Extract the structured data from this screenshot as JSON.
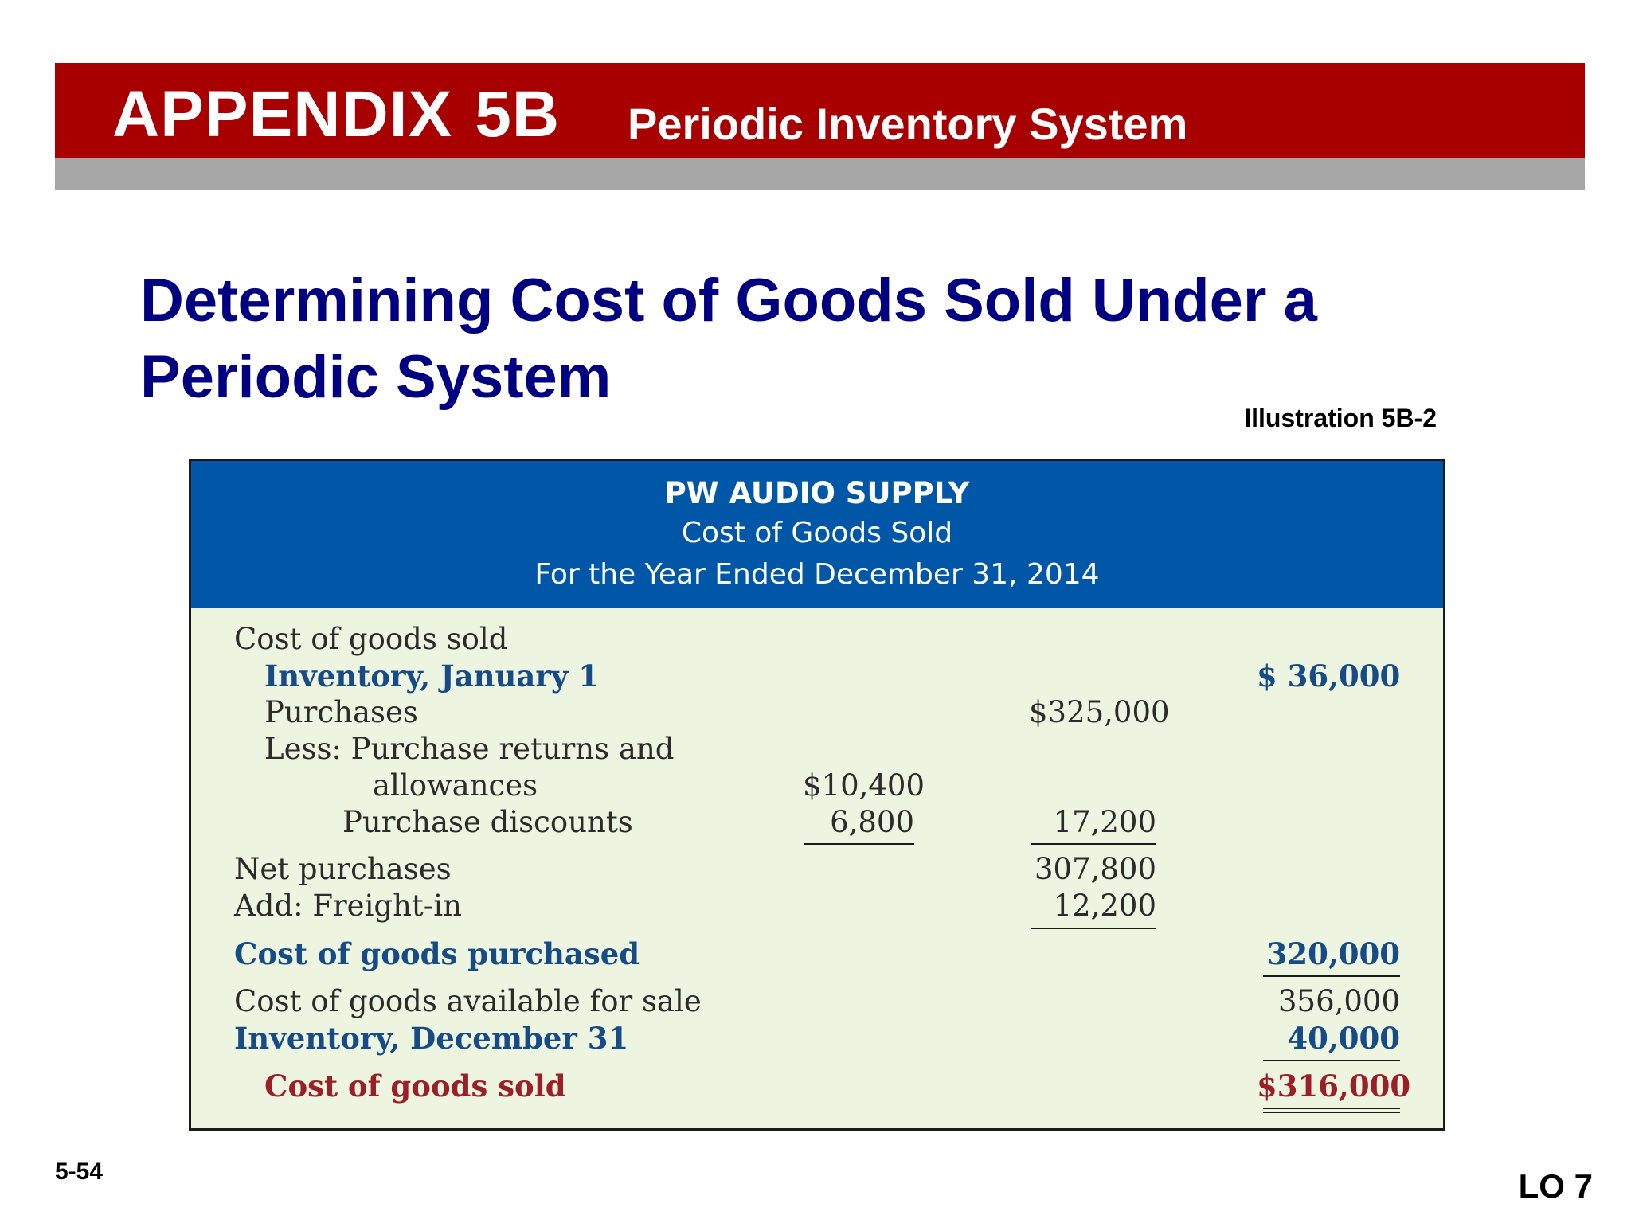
{
  "banner": {
    "appendix_word": "APPENDIX",
    "appendix_number": "5B",
    "subtitle": "Periodic Inventory System"
  },
  "slide": {
    "title": "Determining Cost of Goods Sold Under a Periodic System",
    "illustration": "Illustration 5B-2",
    "number": "5-54",
    "learning_objective": "LO 7"
  },
  "statement": {
    "company": "PW AUDIO SUPPLY",
    "name": "Cost of Goods Sold",
    "period": "For the Year Ended December 31, 2014",
    "rows": {
      "cogs_heading": {
        "label": "Cost of goods sold"
      },
      "inventory_jan": {
        "label": "Inventory, January 1",
        "col3": "$  36,000"
      },
      "purchases": {
        "label": "Purchases",
        "col2": "$325,000"
      },
      "less_returns": {
        "label": "Less: Purchase returns and"
      },
      "allowances": {
        "label": "allowances",
        "col1": "$10,400"
      },
      "discounts": {
        "label": "Purchase discounts",
        "col1": "6,800",
        "col2": "17,200"
      },
      "net_purchases": {
        "label": "Net purchases",
        "col2": "307,800"
      },
      "freight_in": {
        "label": "Add: Freight-in",
        "col2": "12,200"
      },
      "cost_purchased": {
        "label": "Cost of goods purchased",
        "col3": "320,000"
      },
      "available": {
        "label": "Cost of goods available for sale",
        "col3": "356,000"
      },
      "inventory_dec": {
        "label": "Inventory, December 31",
        "col3": "40,000"
      },
      "cogs_total": {
        "label": "Cost of goods sold",
        "col3": "$316,000"
      }
    }
  },
  "colors": {
    "banner_red": "#a80000",
    "banner_gray": "#a6a6a6",
    "title_navy": "#000080",
    "statement_header_blue": "#0057a8",
    "statement_bg": "#edf5e1",
    "highlight_blue": "#174b86",
    "highlight_red": "#9b1f26"
  }
}
